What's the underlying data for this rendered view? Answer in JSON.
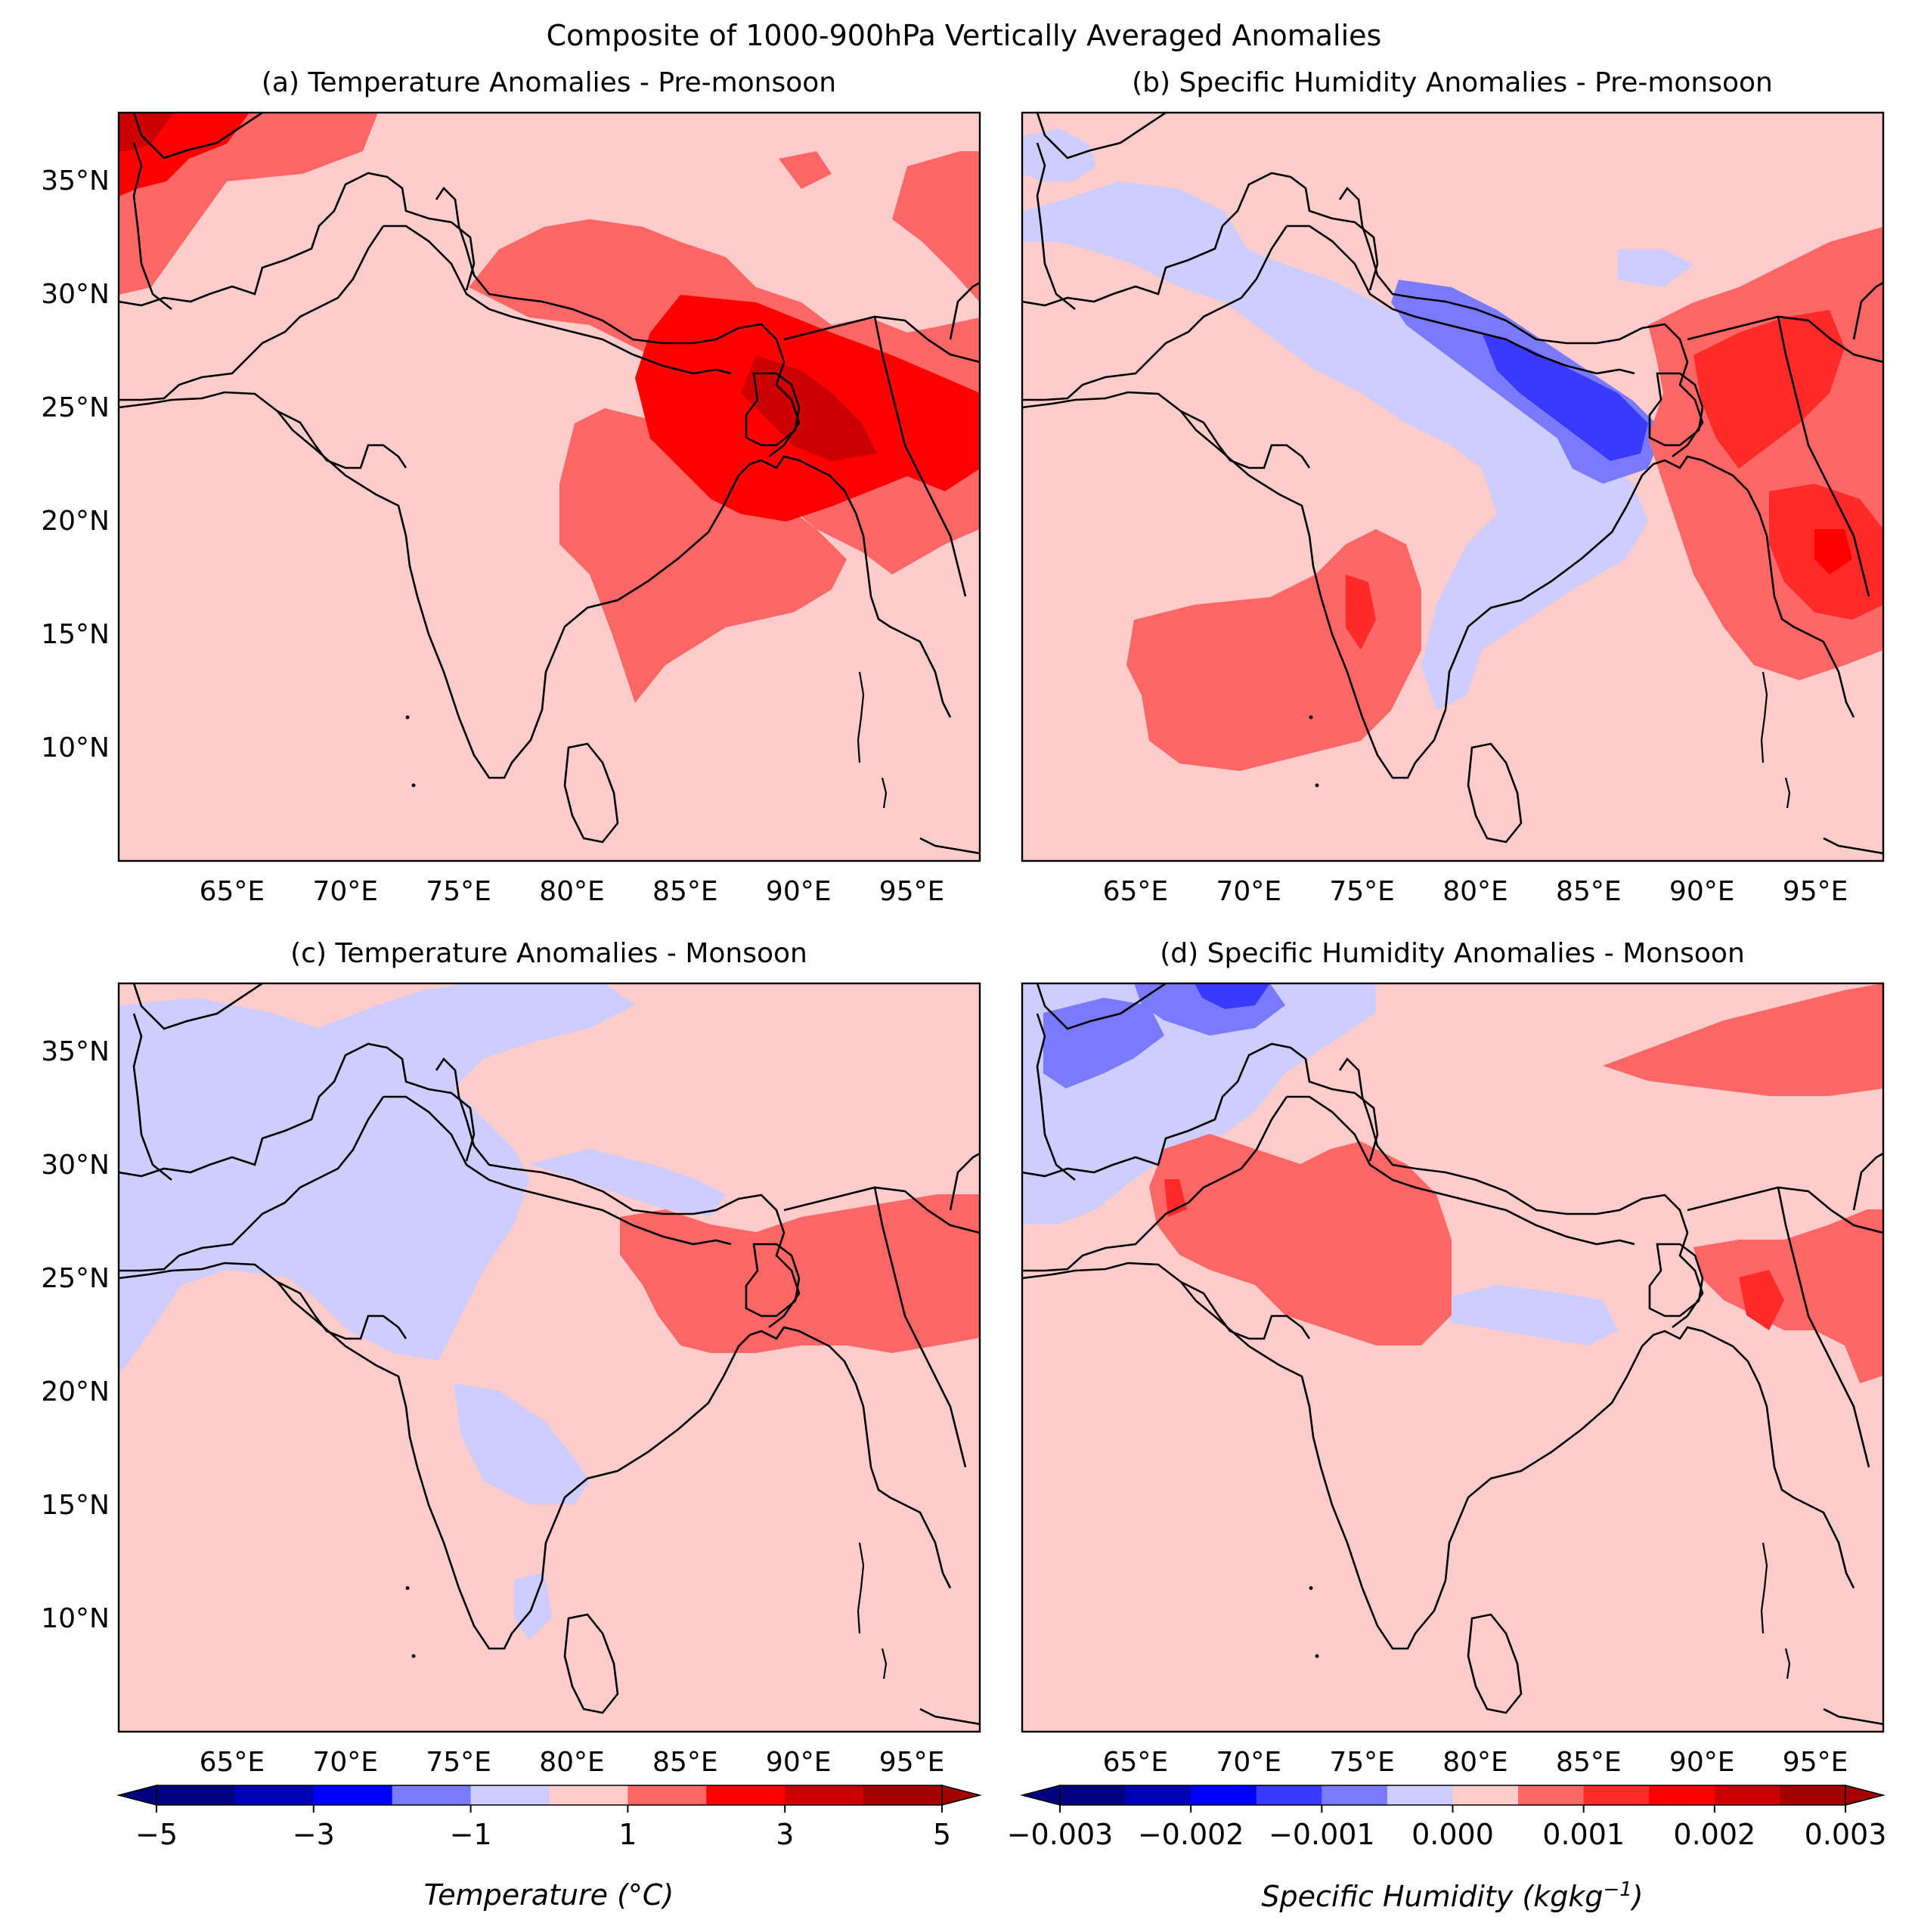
{
  "figure": {
    "title": "Composite of 1000-900hPa Vertically Averaged Anomalies"
  },
  "panels": [
    {
      "id": "a",
      "title": "(a) Temperature Anomalies - Pre-monsoon",
      "field": "temperature",
      "season": "pre-monsoon"
    },
    {
      "id": "b",
      "title": "(b) Specific Humidity Anomalies - Pre-monsoon",
      "field": "specific_humidity",
      "season": "pre-monsoon"
    },
    {
      "id": "c",
      "title": "(c) Temperature Anomalies - Monsoon",
      "field": "temperature",
      "season": "monsoon"
    },
    {
      "id": "d",
      "title": "(d) Specific Humidity Anomalies - Monsoon",
      "field": "specific_humidity",
      "season": "monsoon"
    }
  ],
  "axes": {
    "lon_range": [
      60,
      98
    ],
    "lat_range": [
      5,
      38
    ],
    "lon_ticks": [
      "65°E",
      "70°E",
      "75°E",
      "80°E",
      "85°E",
      "90°E",
      "95°E"
    ],
    "lat_ticks": [
      "35°N",
      "30°N",
      "25°N",
      "20°N",
      "15°N",
      "10°N"
    ]
  },
  "colorbars": {
    "temperature": {
      "label": "Temperature (°C)",
      "ticks": [
        "−5",
        "−3",
        "−1",
        "1",
        "3",
        "5"
      ],
      "range": [
        -5,
        5
      ]
    },
    "humidity": {
      "label_main": "Specific Humidity (",
      "label_unit": "kgkg",
      "label_exp": "−1",
      "label_close": ")",
      "ticks": [
        "−0.003",
        "−0.002",
        "−0.001",
        "0.000",
        "0.001",
        "0.002",
        "0.003"
      ],
      "range": [
        -0.003,
        0.003
      ]
    }
  },
  "colors": {
    "deep_blue": "#000080",
    "navy": "#0000b3",
    "blue": "#0000ff",
    "mid_blue": "#3a3aff",
    "light_blue": "#7a7aff",
    "pale_blue": "#cdcdff",
    "pale_red": "#ffcccc",
    "light_red": "#ff6666",
    "red_mid": "#ff2a2a",
    "red": "#ff0000",
    "dark_red": "#cc0000",
    "deeper_red": "#a50000"
  }
}
